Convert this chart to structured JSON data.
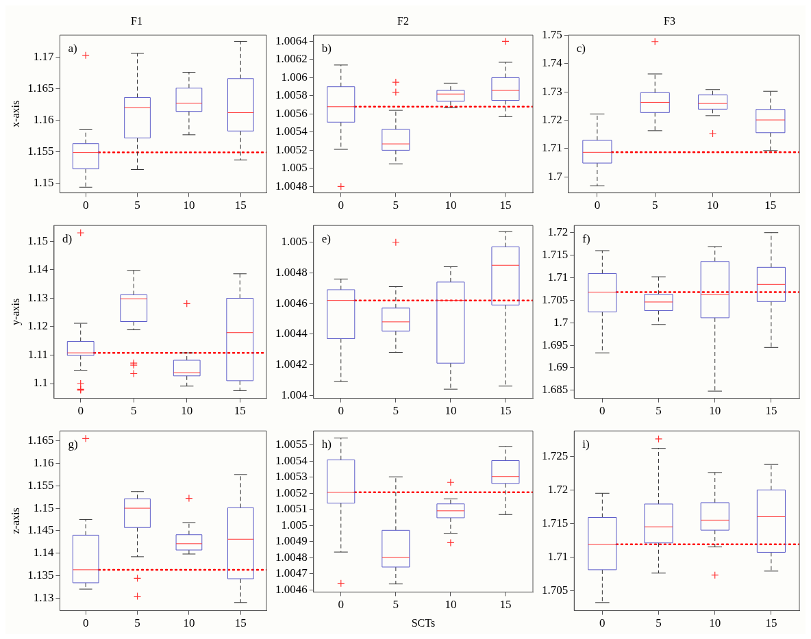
{
  "chart_data": [
    {
      "type": "box",
      "title": "F1",
      "ylabel": "x-axis",
      "annotations": [
        "a)"
      ],
      "categories": [
        "0",
        "5",
        "10",
        "15"
      ],
      "ylim": [
        1.1485,
        1.1735
      ],
      "yticks": [
        1.15,
        1.155,
        1.16,
        1.165,
        1.17
      ],
      "series": [
        {
          "color": "#5a5ac8",
          "boxes": [
            {
              "low": 1.1494,
              "q1": 1.1523,
              "median": 1.1549,
              "q3": 1.1563,
              "high": 1.1585,
              "outliers": [
                1.1703
              ]
            },
            {
              "low": 1.1522,
              "q1": 1.1572,
              "median": 1.162,
              "q3": 1.1636,
              "high": 1.1706
            },
            {
              "low": 1.1577,
              "q1": 1.1614,
              "median": 1.1627,
              "q3": 1.1651,
              "high": 1.1676
            },
            {
              "low": 1.1537,
              "q1": 1.1583,
              "median": 1.1612,
              "q3": 1.1666,
              "high": 1.1725
            }
          ]
        }
      ],
      "ref_lines": [
        {
          "axis": "y",
          "value": 1.1549,
          "color": "#ff0000",
          "line_style": "dotted"
        }
      ]
    },
    {
      "type": "box",
      "title": "F2",
      "annotations": [
        "b)"
      ],
      "categories": [
        "0",
        "5",
        "10",
        "15"
      ],
      "ylim": [
        1.00473,
        1.00647
      ],
      "yticks": [
        1.0048,
        1.005,
        1.0052,
        1.0054,
        1.0056,
        1.0058,
        1.006,
        1.0062,
        1.0064
      ],
      "series": [
        {
          "color": "#5a5ac8",
          "boxes": [
            {
              "low": 1.00521,
              "q1": 1.00551,
              "median": 1.00568,
              "q3": 1.0059,
              "high": 1.00614,
              "outliers": [
                1.0048
              ]
            },
            {
              "low": 1.00505,
              "q1": 1.0052,
              "median": 1.00527,
              "q3": 1.00543,
              "high": 1.00564,
              "outliers": [
                1.00595,
                1.00584
              ]
            },
            {
              "low": 1.00567,
              "q1": 1.00574,
              "median": 1.00582,
              "q3": 1.00586,
              "high": 1.00594
            },
            {
              "low": 1.00557,
              "q1": 1.00575,
              "median": 1.00586,
              "q3": 1.006,
              "high": 1.00617,
              "outliers": [
                1.0064
              ]
            }
          ]
        }
      ],
      "ref_lines": [
        {
          "axis": "y",
          "value": 1.00568,
          "color": "#ff0000",
          "line_style": "dotted"
        }
      ]
    },
    {
      "type": "box",
      "title": "F3",
      "annotations": [
        "c)"
      ],
      "categories": [
        "0",
        "5",
        "10",
        "15"
      ],
      "ylim": [
        1.6944,
        1.75
      ],
      "yticks": [
        1.7,
        1.71,
        1.72,
        1.73,
        1.74,
        1.75
      ],
      "series": [
        {
          "color": "#5a5ac8",
          "boxes": [
            {
              "low": 1.6969,
              "q1": 1.7049,
              "median": 1.7087,
              "q3": 1.7129,
              "high": 1.7222
            },
            {
              "low": 1.7163,
              "q1": 1.7227,
              "median": 1.7263,
              "q3": 1.7297,
              "high": 1.7363,
              "outliers": [
                1.7477
              ]
            },
            {
              "low": 1.7216,
              "q1": 1.7239,
              "median": 1.7259,
              "q3": 1.7289,
              "high": 1.7308,
              "outliers": [
                1.7153
              ]
            },
            {
              "low": 1.7093,
              "q1": 1.7156,
              "median": 1.7201,
              "q3": 1.7238,
              "high": 1.7302
            }
          ]
        }
      ],
      "ref_lines": [
        {
          "axis": "y",
          "value": 1.7087,
          "color": "#ff0000",
          "line_style": "dotted"
        }
      ]
    },
    {
      "type": "box",
      "ylabel": "y-axis",
      "annotations": [
        "d)"
      ],
      "categories": [
        "0",
        "5",
        "10",
        "15"
      ],
      "ylim": [
        1.0948,
        1.1556
      ],
      "yticks": [
        1.1,
        1.11,
        1.12,
        1.13,
        1.14,
        1.15
      ],
      "series": [
        {
          "color": "#5a5ac8",
          "boxes": [
            {
              "low": 1.1047,
              "q1": 1.1099,
              "median": 1.1108,
              "q3": 1.1148,
              "high": 1.1212,
              "outliers": [
                1.153,
                1.1,
                1.098,
                1.0977
              ]
            },
            {
              "low": 1.1189,
              "q1": 1.1218,
              "median": 1.1298,
              "q3": 1.1312,
              "high": 1.1398,
              "outliers": [
                1.1072,
                1.1065,
                1.1035
              ]
            },
            {
              "low": 1.0991,
              "q1": 1.1027,
              "median": 1.1038,
              "q3": 1.1082,
              "high": 1.1108,
              "outliers": [
                1.1281
              ]
            },
            {
              "low": 1.0975,
              "q1": 1.101,
              "median": 1.1179,
              "q3": 1.13,
              "high": 1.1386
            }
          ]
        }
      ],
      "ref_lines": [
        {
          "axis": "y",
          "value": 1.1108,
          "color": "#ff0000",
          "line_style": "dotted"
        }
      ]
    },
    {
      "type": "box",
      "annotations": [
        "e)"
      ],
      "categories": [
        "0",
        "5",
        "10",
        "15"
      ],
      "ylim": [
        1.00398,
        1.00511
      ],
      "yticks": [
        1.004,
        1.0042,
        1.0044,
        1.0046,
        1.0048,
        1.005
      ],
      "series": [
        {
          "color": "#5a5ac8",
          "boxes": [
            {
              "low": 1.00409,
              "q1": 1.00437,
              "median": 1.00462,
              "q3": 1.00469,
              "high": 1.00476
            },
            {
              "low": 1.00428,
              "q1": 1.00442,
              "median": 1.00448,
              "q3": 1.00457,
              "high": 1.00471,
              "outliers": [
                1.005
              ]
            },
            {
              "low": 1.00404,
              "q1": 1.00421,
              "median": 1.00462,
              "q3": 1.00474,
              "high": 1.00484
            },
            {
              "low": 1.00406,
              "q1": 1.00459,
              "median": 1.00485,
              "q3": 1.00497,
              "high": 1.00507
            }
          ]
        }
      ],
      "ref_lines": [
        {
          "axis": "y",
          "value": 1.00462,
          "color": "#ff0000",
          "line_style": "dotted"
        }
      ]
    },
    {
      "type": "box",
      "annotations": [
        "f)"
      ],
      "categories": [
        "0",
        "5",
        "10",
        "15"
      ],
      "ylim": [
        1.6832,
        1.7216
      ],
      "yticks": [
        1.685,
        1.69,
        1.695,
        1.7,
        1.705,
        1.71,
        1.715,
        1.72
      ],
      "series": [
        {
          "color": "#5a5ac8",
          "boxes": [
            {
              "low": 1.6933,
              "q1": 1.7024,
              "median": 1.7068,
              "q3": 1.7109,
              "high": 1.716
            },
            {
              "low": 1.6996,
              "q1": 1.7027,
              "median": 1.7046,
              "q3": 1.7063,
              "high": 1.7102
            },
            {
              "low": 1.6848,
              "q1": 1.7011,
              "median": 1.7063,
              "q3": 1.7136,
              "high": 1.7169
            },
            {
              "low": 1.6945,
              "q1": 1.7047,
              "median": 1.7085,
              "q3": 1.7123,
              "high": 1.72
            }
          ]
        }
      ],
      "ref_lines": [
        {
          "axis": "y",
          "value": 1.7068,
          "color": "#ff0000",
          "line_style": "dotted"
        }
      ]
    },
    {
      "type": "box",
      "ylabel": "z-axis",
      "annotations": [
        "g)"
      ],
      "categories": [
        "0",
        "5",
        "10",
        "15"
      ],
      "ylim": [
        1.1272,
        1.1672
      ],
      "yticks": [
        1.13,
        1.135,
        1.14,
        1.145,
        1.15,
        1.155,
        1.16,
        1.165
      ],
      "series": [
        {
          "color": "#5a5ac8",
          "boxes": [
            {
              "low": 1.132,
              "q1": 1.1334,
              "median": 1.1363,
              "q3": 1.144,
              "high": 1.1475,
              "outliers": [
                1.1655
              ]
            },
            {
              "low": 1.1392,
              "q1": 1.1457,
              "median": 1.15,
              "q3": 1.1521,
              "high": 1.1537,
              "outliers": [
                1.1344,
                1.1304
              ]
            },
            {
              "low": 1.1398,
              "q1": 1.1407,
              "median": 1.1421,
              "q3": 1.1441,
              "high": 1.1468,
              "outliers": [
                1.1522
              ]
            },
            {
              "low": 1.129,
              "q1": 1.1343,
              "median": 1.1431,
              "q3": 1.1501,
              "high": 1.1575
            }
          ]
        }
      ],
      "ref_lines": [
        {
          "axis": "y",
          "value": 1.1363,
          "color": "#ff0000",
          "line_style": "dotted"
        }
      ]
    },
    {
      "type": "box",
      "xlabel": "SCTs",
      "annotations": [
        "h)"
      ],
      "categories": [
        "0",
        "5",
        "10",
        "15"
      ],
      "ylim": [
        1.004587,
        1.005587
      ],
      "yticks": [
        1.0046,
        1.0047,
        1.0048,
        1.0049,
        1.005,
        1.0051,
        1.0052,
        1.0053,
        1.0054,
        1.0055
      ],
      "series": [
        {
          "color": "#5a5ac8",
          "boxes": [
            {
              "low": 1.004835,
              "q1": 1.005139,
              "median": 1.005206,
              "q3": 1.005407,
              "high": 1.005543,
              "outliers": [
                1.004641
              ]
            },
            {
              "low": 1.004637,
              "q1": 1.004742,
              "median": 1.004803,
              "q3": 1.00497,
              "high": 1.005302
            },
            {
              "low": 1.004952,
              "q1": 1.005048,
              "median": 1.005091,
              "q3": 1.005134,
              "high": 1.005165,
              "outliers": [
                1.005268,
                1.004893
              ]
            },
            {
              "low": 1.005068,
              "q1": 1.005261,
              "median": 1.005304,
              "q3": 1.005403,
              "high": 1.005491
            }
          ]
        }
      ],
      "ref_lines": [
        {
          "axis": "y",
          "value": 1.005206,
          "color": "#ff0000",
          "line_style": "dotted"
        }
      ]
    },
    {
      "type": "box",
      "annotations": [
        "i)"
      ],
      "categories": [
        "0",
        "5",
        "10",
        "15"
      ],
      "ylim": [
        1.702,
        1.7288
      ],
      "yticks": [
        1.705,
        1.71,
        1.715,
        1.72,
        1.725
      ],
      "series": [
        {
          "color": "#5a5ac8",
          "boxes": [
            {
              "low": 1.7032,
              "q1": 1.7081,
              "median": 1.7119,
              "q3": 1.7159,
              "high": 1.7195
            },
            {
              "low": 1.7076,
              "q1": 1.7121,
              "median": 1.7145,
              "q3": 1.7179,
              "high": 1.7262,
              "outliers": [
                1.7276
              ]
            },
            {
              "low": 1.7115,
              "q1": 1.714,
              "median": 1.7155,
              "q3": 1.7181,
              "high": 1.7226,
              "outliers": [
                1.7073
              ]
            },
            {
              "low": 1.7079,
              "q1": 1.7107,
              "median": 1.716,
              "q3": 1.72,
              "high": 1.7238
            }
          ]
        }
      ],
      "ref_lines": [
        {
          "axis": "y",
          "value": 1.7119,
          "color": "#ff0000",
          "line_style": "dotted"
        }
      ]
    }
  ]
}
